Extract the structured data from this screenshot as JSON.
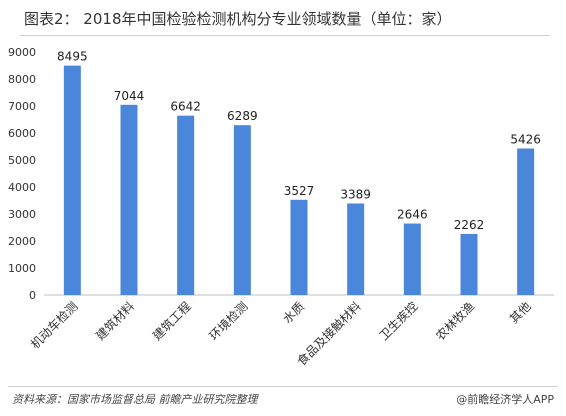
{
  "header": {
    "title": "图表2： 2018年中国检验检测机构分专业领域数量（单位：家）"
  },
  "footer": {
    "source": "资料来源：国家市场监督总局 前瞻产业研究院整理",
    "brand": "@前瞻经济学人APP"
  },
  "chart_data": {
    "type": "bar",
    "title": "图表2： 2018年中国检验检测机构分专业领域数量（单位：家）",
    "xlabel": "",
    "ylabel": "",
    "categories": [
      "机动车检测",
      "建筑材料",
      "建筑工程",
      "环境检测",
      "水质",
      "食品及接触材料",
      "卫生疾控",
      "农林牧渔",
      "其他"
    ],
    "values": [
      8495,
      7044,
      6642,
      6289,
      3527,
      3389,
      2646,
      2262,
      5426
    ],
    "data_labels": [
      "8495",
      "7044",
      "6642",
      "6289",
      "3527",
      "3389",
      "2646",
      "2262",
      "5426"
    ],
    "ylim": [
      0,
      9000
    ],
    "yticks": [
      0,
      1000,
      2000,
      3000,
      4000,
      5000,
      6000,
      7000,
      8000,
      9000
    ],
    "ytick_labels": [
      "0",
      "1000",
      "2000",
      "3000",
      "4000",
      "5000",
      "6000",
      "7000",
      "8000",
      "9000"
    ],
    "grid": false,
    "legend": "none",
    "bar_color": "#4a86d9"
  }
}
